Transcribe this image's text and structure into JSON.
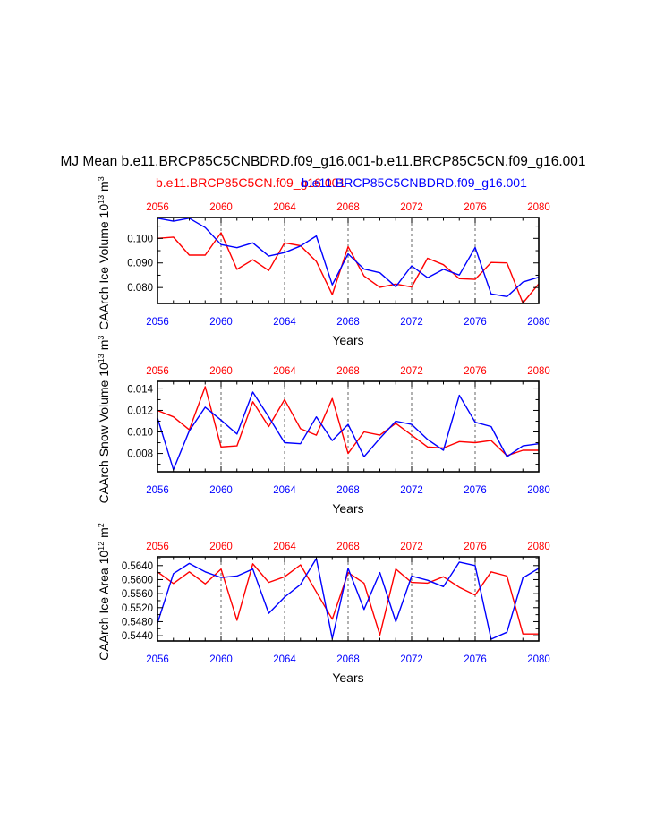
{
  "title": "MJ Mean b.e11.BRCP85C5CNBDRD.f09_g16.001-b.e11.BRCP85C5CN.f09_g16.001",
  "legend": {
    "red_label": "b.e11.BRCP85C5CN.f09_g16.001",
    "blue_label": "b.e11.BRCP85C5CNBDRD.f09_g16.001"
  },
  "colors": {
    "red": "#ff0000",
    "blue": "#0000ff",
    "axis": "#000000",
    "guide": "#555555"
  },
  "chart_data": [
    {
      "type": "line",
      "ylabel": "CAArch Ice Volume 10",
      "ylabel_exp": "13",
      "ylabel_unit": " m",
      "ylabel_unit_exp": "3",
      "xlabel": "Years",
      "xlim": [
        2056,
        2080
      ],
      "ylim": [
        0.0735,
        0.1085
      ],
      "yticks": [
        0.08,
        0.085,
        0.09,
        0.095,
        0.1,
        0.105
      ],
      "ytick_labels": [
        "0.080",
        "0.090",
        "0.100"
      ],
      "ytick_label_values": [
        0.08,
        0.09,
        0.1
      ],
      "xticks": [
        2056,
        2060,
        2064,
        2068,
        2072,
        2076,
        2080
      ],
      "xtick_labels": [
        "2056",
        "2060",
        "2064",
        "2068",
        "2072",
        "2076",
        "2080"
      ],
      "guides": [
        2060,
        2064,
        2068,
        2072,
        2076
      ],
      "x": [
        2056,
        2057,
        2058,
        2059,
        2060,
        2061,
        2062,
        2063,
        2064,
        2065,
        2066,
        2067,
        2068,
        2069,
        2070,
        2071,
        2072,
        2073,
        2074,
        2075,
        2076,
        2077,
        2078,
        2079,
        2080
      ],
      "series": [
        {
          "color": "red",
          "values": [
            0.1,
            0.1005,
            0.0932,
            0.0932,
            0.1023,
            0.0874,
            0.0913,
            0.0869,
            0.0982,
            0.097,
            0.0906,
            0.0771,
            0.0966,
            0.0847,
            0.0801,
            0.0814,
            0.0802,
            0.0919,
            0.0893,
            0.0836,
            0.0833,
            0.0902,
            0.09,
            0.0737,
            0.0815
          ]
        },
        {
          "color": "blue",
          "values": [
            0.1082,
            0.107,
            0.1082,
            0.1044,
            0.0975,
            0.0962,
            0.0982,
            0.0928,
            0.0942,
            0.0969,
            0.101,
            0.0811,
            0.0937,
            0.0875,
            0.086,
            0.0803,
            0.0888,
            0.084,
            0.0874,
            0.0851,
            0.0963,
            0.0774,
            0.0763,
            0.0822,
            0.0842
          ]
        }
      ]
    },
    {
      "type": "line",
      "ylabel": "CAArch Snow Volume 10",
      "ylabel_exp": "13",
      "ylabel_unit": " m",
      "ylabel_unit_exp": "3",
      "xlabel": "Years",
      "xlim": [
        2056,
        2080
      ],
      "ylim": [
        0.0063,
        0.0147
      ],
      "yticks": [
        0.007,
        0.008,
        0.009,
        0.01,
        0.011,
        0.012,
        0.013,
        0.014
      ],
      "ytick_labels": [
        "0.008",
        "0.010",
        "0.012",
        "0.014"
      ],
      "ytick_label_values": [
        0.008,
        0.01,
        0.012,
        0.014
      ],
      "xticks": [
        2056,
        2060,
        2064,
        2068,
        2072,
        2076,
        2080
      ],
      "xtick_labels": [
        "2056",
        "2060",
        "2064",
        "2068",
        "2072",
        "2076",
        "2080"
      ],
      "guides": [
        2060,
        2064,
        2068,
        2072,
        2076
      ],
      "x": [
        2056,
        2057,
        2058,
        2059,
        2060,
        2061,
        2062,
        2063,
        2064,
        2065,
        2066,
        2067,
        2068,
        2069,
        2070,
        2071,
        2072,
        2073,
        2074,
        2075,
        2076,
        2077,
        2078,
        2079,
        2080
      ],
      "series": [
        {
          "color": "red",
          "values": [
            0.012,
            0.0114,
            0.0102,
            0.0142,
            0.0086,
            0.0087,
            0.0128,
            0.0105,
            0.013,
            0.0103,
            0.0097,
            0.0131,
            0.008,
            0.01,
            0.0097,
            0.0108,
            0.0097,
            0.0086,
            0.0085,
            0.0091,
            0.009,
            0.0092,
            0.0078,
            0.0083,
            0.0083
          ]
        },
        {
          "color": "blue",
          "values": [
            0.0113,
            0.0065,
            0.0101,
            0.0123,
            0.0111,
            0.0098,
            0.0137,
            0.0114,
            0.009,
            0.0089,
            0.0114,
            0.0092,
            0.0107,
            0.0077,
            0.0094,
            0.011,
            0.0107,
            0.0093,
            0.0083,
            0.0134,
            0.0109,
            0.0105,
            0.0077,
            0.0087,
            0.0089
          ]
        }
      ]
    },
    {
      "type": "line",
      "ylabel": "CAArch Ice Area 10",
      "ylabel_exp": "12",
      "ylabel_unit": " m",
      "ylabel_unit_exp": "2",
      "xlabel": "Years",
      "xlim": [
        2056,
        2080
      ],
      "ylim": [
        0.5425,
        0.5665
      ],
      "yticks": [
        0.544,
        0.546,
        0.548,
        0.55,
        0.552,
        0.554,
        0.556,
        0.558,
        0.56,
        0.562,
        0.564,
        0.566
      ],
      "ytick_labels": [
        "0.5440",
        "0.5480",
        "0.5520",
        "0.5560",
        "0.5600",
        "0.5640"
      ],
      "ytick_label_values": [
        0.544,
        0.548,
        0.552,
        0.556,
        0.56,
        0.564
      ],
      "xticks": [
        2056,
        2060,
        2064,
        2068,
        2072,
        2076,
        2080
      ],
      "xtick_labels": [
        "2056",
        "2060",
        "2064",
        "2068",
        "2072",
        "2076",
        "2080"
      ],
      "guides": [
        2060,
        2064,
        2068,
        2072,
        2076
      ],
      "x": [
        2056,
        2057,
        2058,
        2059,
        2060,
        2061,
        2062,
        2063,
        2064,
        2065,
        2066,
        2067,
        2068,
        2069,
        2070,
        2071,
        2072,
        2073,
        2074,
        2075,
        2076,
        2077,
        2078,
        2079,
        2080
      ],
      "series": [
        {
          "color": "red",
          "values": [
            0.5622,
            0.5589,
            0.5622,
            0.5588,
            0.563,
            0.5484,
            0.5645,
            0.5592,
            0.5608,
            0.5642,
            0.5565,
            0.5487,
            0.562,
            0.559,
            0.5442,
            0.563,
            0.5592,
            0.559,
            0.5608,
            0.5578,
            0.5556,
            0.5622,
            0.561,
            0.5445,
            0.5445
          ]
        },
        {
          "color": "blue",
          "values": [
            0.5476,
            0.5617,
            0.5646,
            0.5622,
            0.5606,
            0.561,
            0.563,
            0.5504,
            0.555,
            0.5586,
            0.566,
            0.5432,
            0.5632,
            0.5515,
            0.562,
            0.548,
            0.561,
            0.5598,
            0.558,
            0.565,
            0.564,
            0.543,
            0.545,
            0.5605,
            0.5632
          ]
        }
      ]
    }
  ]
}
